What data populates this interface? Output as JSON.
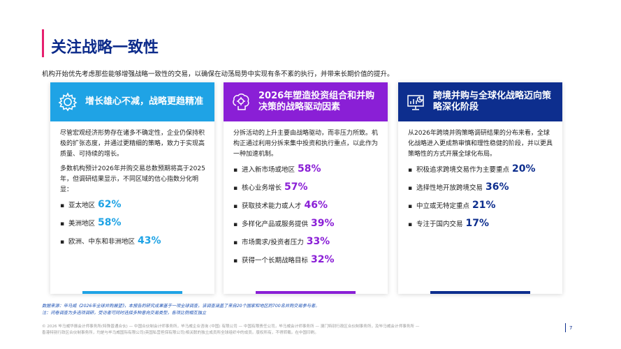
{
  "page": {
    "title": "关注战略一致性",
    "intro": "机构开始优先考虑那些能够增强战略一致性的交易，以确保在动荡局势中实现有条不紊的执行，并带来长期价值的提升。",
    "page_number": "7"
  },
  "colors": {
    "accent": "#e6206e",
    "blue_light": "#1fa3e5",
    "purple": "#8a1fd6",
    "navy": "#0d2e8e"
  },
  "cards": [
    {
      "icon": "gear-icon",
      "title": "增长雄心不减，战略更趋精准",
      "paragraphs": [
        "尽管宏观经济形势存在诸多不确定性，企业仍保持积极的扩张态度，并通过更精细的策略，致力于实现高质量、可持续的增长。",
        "多数机构预计2026年并购交易总数预期将高于2025年，但调研结果显示，不同区域的信心指数分化明显："
      ],
      "items": [
        {
          "label": "亚太地区",
          "value": "62%"
        },
        {
          "label": "美洲地区",
          "value": "58%"
        },
        {
          "label": "欧洲、中东和非洲地区",
          "value": "43%"
        }
      ]
    },
    {
      "icon": "brain-icon",
      "title": "2026年塑造投资组合和并购决策的战略驱动因素",
      "paragraphs": [
        "分拆活动的上升主要由战略驱动，而非压力所致。机构正通过利用分拆来集中投资和执行重点，以此作为一种加速机制。"
      ],
      "items": [
        {
          "label": "进入新市场或地区",
          "value": "58%"
        },
        {
          "label": "核心业务增长",
          "value": "57%"
        },
        {
          "label": "获取技术能力或人才",
          "value": "46%"
        },
        {
          "label": "多样化产品或服务提供",
          "value": "39%"
        },
        {
          "label": "市场需求/投资者压力",
          "value": "33%"
        },
        {
          "label": "获得一个长期战略目标",
          "value": "32%"
        }
      ]
    },
    {
      "icon": "chart-presentation-icon",
      "title": "跨境并购与全球化战略迈向策略深化阶段",
      "paragraphs": [
        "从2026年跨境并购策略调研结果的分布来看，全球化战略进入更成熟审慎和理性稳健的阶段，并以更具策略性的方式开展全球化布局。"
      ],
      "items": [
        {
          "label": "积极追求跨境交易作为主要重点",
          "value": "20%"
        },
        {
          "label": "选择性地开放跨境交易",
          "value": "36%"
        },
        {
          "label": "中立或无特定重点",
          "value": "21%"
        },
        {
          "label": "专注于国内交易",
          "value": "17%"
        }
      ]
    }
  ],
  "footnotes": {
    "source": "数据来源：毕马威《2026年全球并购展望》，本报告的研究成果基于一项全球调查，该调查涵盖了来自20个国家和地区的700名并购交易参与者。",
    "note": "注：问卷调查为多选项调研，受访者可同时选择多种意向交易类型，各项比例相互独立"
  },
  "legal": {
    "line1": "© 2026 毕马威华振会计师事务所(特殊普通合伙) — 中国合伙制会计师事务所，毕马威企业咨询 (中国) 有限公司 — 中国有限责任公司，毕马威会计师事务所 — 澳门特别行政区合伙制事务所，及毕马威会计师事务所 —",
    "line2": "香港特别行政区合伙制事务所，均是与毕马威国际有限公司(英国私营担保有限公司)相关联的独立成员所全球组织中的成员。版权所有，不得转载。在中国印刷。"
  }
}
